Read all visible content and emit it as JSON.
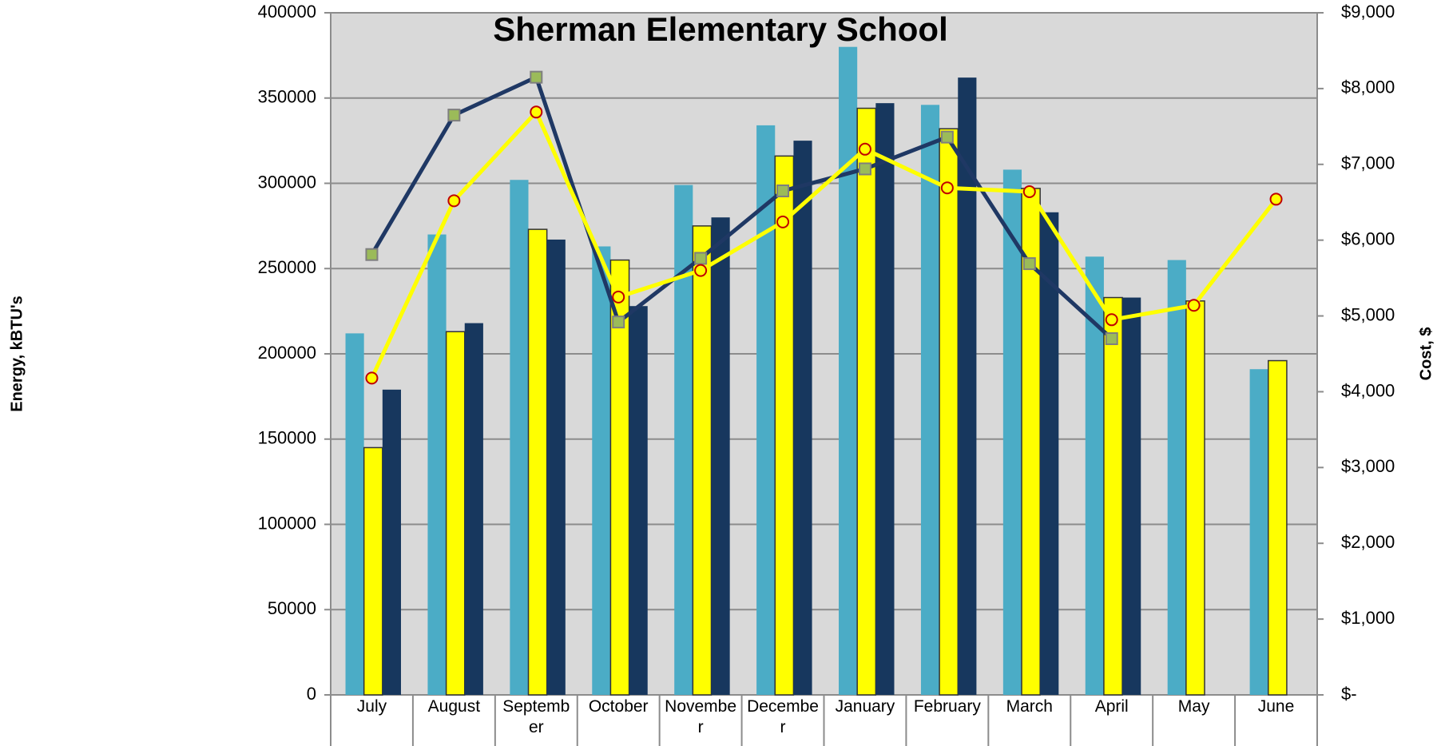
{
  "chart_data": {
    "type": "bar",
    "title": "Sherman Elementary School",
    "y_label": "Energy, kBTU's",
    "y2_label": "Cost, $",
    "categories": [
      "July",
      "August",
      "September",
      "October",
      "November",
      "December",
      "January",
      "February",
      "March",
      "April",
      "May",
      "June"
    ],
    "series": [
      {
        "type": "bar",
        "color": "#4bacc6",
        "values": [
          212000,
          270000,
          302000,
          263000,
          299000,
          334000,
          380000,
          346000,
          308000,
          257000,
          255000,
          191000
        ]
      },
      {
        "type": "bar",
        "color": "#ffff00",
        "values": [
          145000,
          213000,
          273000,
          255000,
          275000,
          316000,
          344000,
          332000,
          297000,
          233000,
          231000,
          196000
        ]
      },
      {
        "type": "bar",
        "color": "#17375e",
        "values": [
          179000,
          218000,
          267000,
          228000,
          280000,
          325000,
          347000,
          362000,
          283000,
          233000,
          null,
          null
        ]
      },
      {
        "type": "line",
        "axis": "y2",
        "color": "#1f3864",
        "marker": "square",
        "marker_color": "#9bbb59",
        "values": [
          5810,
          7650,
          8150,
          4920,
          5760,
          6650,
          6940,
          7360,
          5690,
          4700,
          null,
          null
        ]
      },
      {
        "type": "line",
        "axis": "y2",
        "color": "#ffff00",
        "marker": "circle",
        "marker_color": "#ffff00",
        "values": [
          4180,
          6520,
          7690,
          5250,
          5600,
          6240,
          7200,
          6690,
          6640,
          4950,
          5140,
          6540
        ]
      }
    ],
    "ylim": [
      0,
      400000
    ],
    "yticks": [
      0,
      50000,
      100000,
      150000,
      200000,
      250000,
      300000,
      350000,
      400000
    ],
    "y2lim": [
      0,
      9000
    ],
    "y2ticks": [
      {
        "value": 0,
        "label": "$-"
      },
      {
        "value": 1000,
        "label": "$1,000"
      },
      {
        "value": 2000,
        "label": "$2,000"
      },
      {
        "value": 3000,
        "label": "$3,000"
      },
      {
        "value": 4000,
        "label": "$4,000"
      },
      {
        "value": 5000,
        "label": "$5,000"
      },
      {
        "value": 6000,
        "label": "$6,000"
      },
      {
        "value": 7000,
        "label": "$7,000"
      },
      {
        "value": 8000,
        "label": "$8,000"
      },
      {
        "value": 9000,
        "label": "$9,000"
      }
    ],
    "grid": true
  }
}
